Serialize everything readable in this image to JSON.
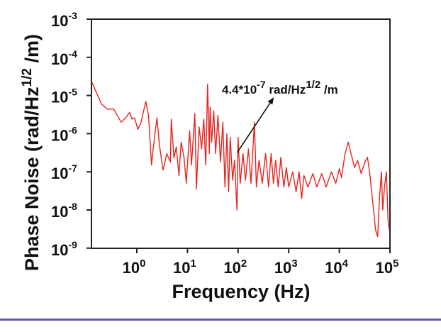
{
  "chart_data": {
    "type": "line",
    "title": "",
    "xlabel": "Frequency (Hz)",
    "ylabel_main": "Phase Noise (rad/Hz",
    "ylabel_sup": "1/2",
    "ylabel_tail": " /m)",
    "xscale": "log",
    "yscale": "log",
    "xlim": [
      0.13,
      100000
    ],
    "ylim": [
      1e-09,
      0.001
    ],
    "grid": false,
    "line_color": "#e8231e",
    "x_ticks": [
      {
        "base": "10",
        "exp": "0",
        "value": 1
      },
      {
        "base": "10",
        "exp": "1",
        "value": 10
      },
      {
        "base": "10",
        "exp": "2",
        "value": 100
      },
      {
        "base": "10",
        "exp": "3",
        "value": 1000
      },
      {
        "base": "10",
        "exp": "4",
        "value": 10000
      },
      {
        "base": "10",
        "exp": "5",
        "value": 100000
      }
    ],
    "y_ticks": [
      {
        "base": "10",
        "exp": "-3",
        "value": 0.001
      },
      {
        "base": "10",
        "exp": "-4",
        "value": 0.0001
      },
      {
        "base": "10",
        "exp": "-5",
        "value": 1e-05
      },
      {
        "base": "10",
        "exp": "-6",
        "value": 1e-06
      },
      {
        "base": "10",
        "exp": "-7",
        "value": 1e-07
      },
      {
        "base": "10",
        "exp": "-8",
        "value": 1e-08
      },
      {
        "base": "10",
        "exp": "-9",
        "value": 1e-09
      }
    ],
    "annotation": {
      "text_main": "4.4*10",
      "text_exp": "-7",
      "text_mid": " rad/Hz",
      "text_sup": "1/2",
      "text_tail": " /m",
      "arrow_from": [
        96,
        3.2e-07
      ],
      "arrow_to": [
        510,
        9e-06
      ]
    },
    "series": [
      {
        "points": [
          [
            0.13,
            2.2e-05
          ],
          [
            0.2,
            6e-06
          ],
          [
            0.26,
            4.4e-06
          ],
          [
            0.35,
            4.4e-06
          ],
          [
            0.49,
            2e-06
          ],
          [
            0.6,
            2.6e-06
          ],
          [
            0.72,
            3.6e-06
          ],
          [
            0.8,
            2.4e-06
          ],
          [
            0.9,
            2.6e-06
          ],
          [
            1.05,
            1.3e-06
          ],
          [
            1.2,
            1.9e-06
          ],
          [
            1.5,
            7e-06
          ],
          [
            1.7,
            3e-06
          ],
          [
            1.95,
            1.5e-07
          ],
          [
            2.1,
            4e-07
          ],
          [
            2.5,
            2.6e-06
          ],
          [
            2.8,
            5e-07
          ],
          [
            3.3,
            1.1e-07
          ],
          [
            3.9,
            3e-07
          ],
          [
            4.6,
            1.8e-07
          ],
          [
            4.8,
            2.4e-06
          ],
          [
            5.4,
            2.3e-07
          ],
          [
            6,
            4.5e-07
          ],
          [
            6.8,
            8e-08
          ],
          [
            7.5,
            6e-07
          ],
          [
            8.5,
            2.5e-07
          ],
          [
            9.5,
            5e-08
          ],
          [
            11,
            1.2e-06
          ],
          [
            12,
            1.5e-07
          ],
          [
            14,
            3.4e-06
          ],
          [
            15,
            3.5e-08
          ],
          [
            17,
            1.5e-06
          ],
          [
            19,
            4e-07
          ],
          [
            21,
            2.4e-06
          ],
          [
            23,
            1.5e-07
          ],
          [
            25,
            2e-05
          ],
          [
            27,
            3e-07
          ],
          [
            28,
            5e-06
          ],
          [
            30,
            6e-07
          ],
          [
            33,
            4e-06
          ],
          [
            36,
            3e-07
          ],
          [
            40,
            3e-06
          ],
          [
            45,
            1.8e-07
          ],
          [
            50,
            2e-06
          ],
          [
            55,
            4e-08
          ],
          [
            60,
            1e-06
          ],
          [
            65,
            3e-08
          ],
          [
            70,
            8e-07
          ],
          [
            78,
            6e-08
          ],
          [
            85,
            2e-07
          ],
          [
            95,
            1e-08
          ],
          [
            100,
            8e-07
          ],
          [
            110,
            5e-08
          ],
          [
            125,
            3e-07
          ],
          [
            140,
            6e-08
          ],
          [
            160,
            4e-07
          ],
          [
            180,
            5e-08
          ],
          [
            210,
            2e-06
          ],
          [
            230,
            4e-08
          ],
          [
            260,
            2e-07
          ],
          [
            300,
            5e-08
          ],
          [
            350,
            3e-07
          ],
          [
            400,
            4e-08
          ],
          [
            450,
            3e-07
          ],
          [
            500,
            5e-08
          ],
          [
            550,
            2e-07
          ],
          [
            620,
            4e-08
          ],
          [
            700,
            2.4e-07
          ],
          [
            800,
            4e-08
          ],
          [
            900,
            1.3e-07
          ],
          [
            1000,
            4e-08
          ],
          [
            1200,
            1e-07
          ],
          [
            1400,
            3e-08
          ],
          [
            1600,
            1e-07
          ],
          [
            1800,
            2e-08
          ],
          [
            2000,
            8e-08
          ],
          [
            2400,
            4e-08
          ],
          [
            3000,
            9e-08
          ],
          [
            3600,
            4e-08
          ],
          [
            4500,
            9e-08
          ],
          [
            5500,
            4e-08
          ],
          [
            7000,
            1e-07
          ],
          [
            8500,
            5e-08
          ],
          [
            10000,
            1.2e-07
          ],
          [
            11000,
            7e-08
          ],
          [
            13000,
            3e-07
          ],
          [
            15000,
            6e-07
          ],
          [
            17000,
            3e-07
          ],
          [
            20000,
            1.3e-07
          ],
          [
            23000,
            2e-07
          ],
          [
            27000,
            9e-08
          ],
          [
            32000,
            1.8e-07
          ],
          [
            36000,
            2.4e-07
          ],
          [
            40000,
            9e-08
          ],
          [
            45000,
            2e-08
          ],
          [
            52000,
            3e-09
          ],
          [
            57000,
            2e-09
          ],
          [
            62000,
            2e-08
          ],
          [
            68000,
            1e-07
          ],
          [
            72000,
            1e-08
          ],
          [
            78000,
            4e-08
          ],
          [
            85000,
            1e-07
          ],
          [
            92000,
            5e-09
          ],
          [
            100000,
            2.5e-09
          ]
        ]
      }
    ]
  },
  "footer_rule_color": "#6b55a8"
}
